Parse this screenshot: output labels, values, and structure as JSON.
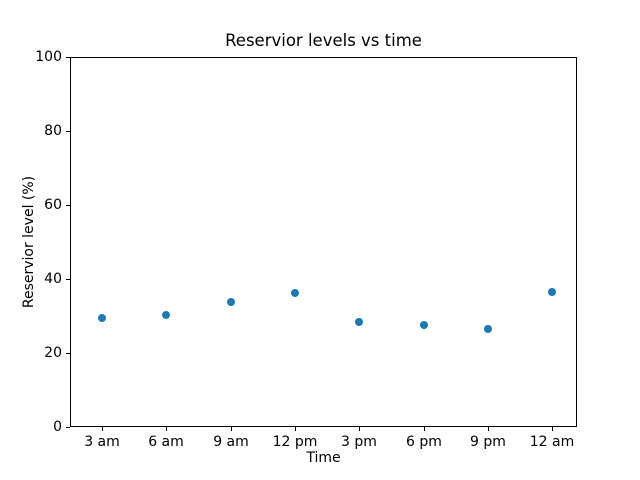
{
  "chart_data": {
    "type": "scatter",
    "title": "Reservior levels vs time",
    "xlabel": "Time",
    "ylabel": "Reservior level (%)",
    "categories": [
      "3 am",
      "6 am",
      "9 am",
      "12 pm",
      "3 pm",
      "6 pm",
      "9 pm",
      "12 am"
    ],
    "values": [
      29.4,
      30.3,
      33.9,
      36.2,
      28.3,
      27.6,
      26.4,
      36.5
    ],
    "ylim": [
      0,
      100
    ],
    "yticks": [
      0,
      20,
      40,
      60,
      80,
      100
    ],
    "marker_color": "#1f77b4",
    "grid": false
  }
}
